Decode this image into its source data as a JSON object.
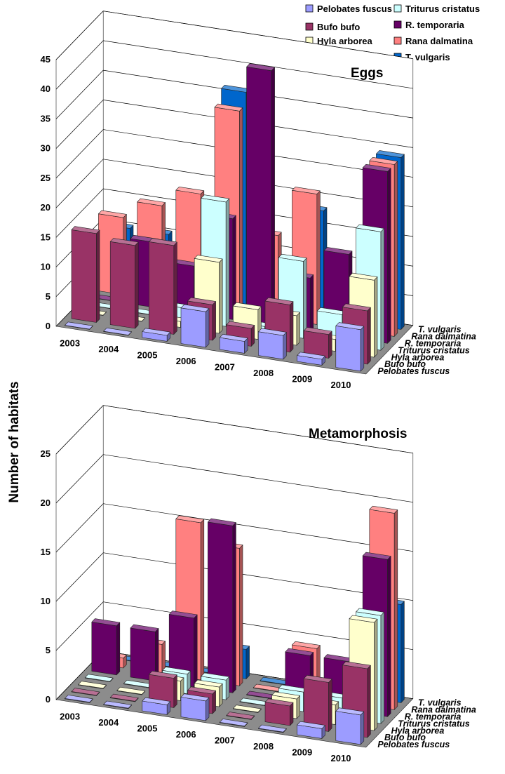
{
  "y_axis_label": "Number of habitats",
  "legend": [
    {
      "label": "Pelobates fuscus",
      "color": "#9C9CFF"
    },
    {
      "label": "Bufo bufo",
      "color": "#993366"
    },
    {
      "label": "Hyla arborea",
      "color": "#FFFFCC"
    },
    {
      "label": "Triturus cristatus",
      "color": "#CCFFFF"
    },
    {
      "label": "R. temporaria",
      "color": "#660066"
    },
    {
      "label": "Rana dalmatina",
      "color": "#FF8080"
    },
    {
      "label": "T. vulgaris",
      "color": "#0066CC"
    }
  ],
  "chart_data": [
    {
      "type": "bar",
      "title": "Eggs",
      "ylabel": "Number of habitats",
      "categories": [
        "2003",
        "2004",
        "2005",
        "2006",
        "2007",
        "2008",
        "2009",
        "2010"
      ],
      "ylim": [
        0,
        45
      ],
      "yticks": [
        0,
        5,
        10,
        15,
        20,
        25,
        30,
        35,
        40,
        45
      ],
      "series": [
        {
          "name": "Pelobates fuscus",
          "values": [
            0,
            0,
            1,
            6,
            2,
            4,
            1,
            7
          ]
        },
        {
          "name": "Bufo bufo",
          "values": [
            15,
            14,
            15,
            6,
            3,
            8,
            4,
            9
          ]
        },
        {
          "name": "Hyla arborea",
          "values": [
            0,
            0,
            1,
            12,
            5,
            5,
            2,
            13
          ]
        },
        {
          "name": "Triturus cristatus",
          "values": [
            0,
            0,
            2,
            21,
            1,
            13,
            5,
            20
          ]
        },
        {
          "name": "R. temporaria",
          "values": [
            0,
            11,
            8,
            17,
            43,
            9,
            14,
            29
          ]
        },
        {
          "name": "Rana dalmatina",
          "values": [
            13,
            16,
            19,
            34,
            14,
            22,
            6,
            29
          ]
        },
        {
          "name": "T. vulgaris",
          "values": [
            10,
            10,
            14,
            36,
            0,
            18,
            0,
            29
          ]
        }
      ]
    },
    {
      "type": "bar",
      "title": "Metamorphosis",
      "ylabel": "Number of habitats",
      "categories": [
        "2003",
        "2004",
        "2005",
        "2006",
        "2007",
        "2008",
        "2009",
        "2010"
      ],
      "ylim": [
        0,
        25
      ],
      "yticks": [
        0,
        5,
        10,
        15,
        20,
        25
      ],
      "series": [
        {
          "name": "Pelobates fuscus",
          "values": [
            0,
            0,
            1,
            2,
            0,
            0,
            1,
            3
          ]
        },
        {
          "name": "Bufo bufo",
          "values": [
            0,
            0,
            3,
            2,
            0,
            2,
            5,
            7
          ]
        },
        {
          "name": "Hyla arborea",
          "values": [
            0,
            0,
            2,
            2,
            0,
            2,
            2,
            11
          ]
        },
        {
          "name": "Triturus cristatus",
          "values": [
            0,
            0,
            2,
            2,
            0,
            2,
            2,
            11
          ]
        },
        {
          "name": "R. temporaria",
          "values": [
            5,
            5,
            7,
            17,
            0,
            5,
            5,
            16
          ]
        },
        {
          "name": "Rana dalmatina",
          "values": [
            1,
            3,
            16,
            14,
            0,
            5,
            4,
            20
          ]
        },
        {
          "name": "T. vulgaris",
          "values": [
            0,
            0,
            0,
            3,
            0,
            0,
            0,
            10
          ]
        }
      ]
    }
  ]
}
